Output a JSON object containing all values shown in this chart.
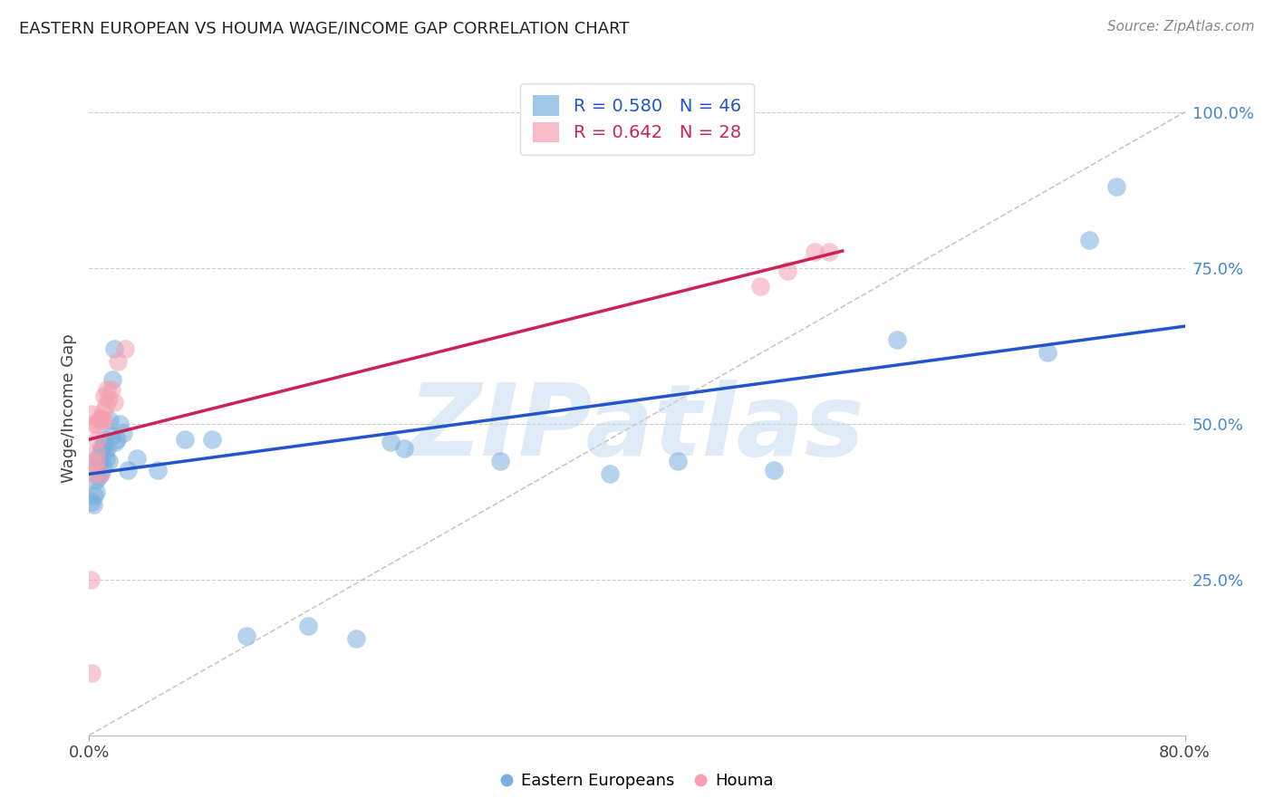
{
  "title": "EASTERN EUROPEAN VS HOUMA WAGE/INCOME GAP CORRELATION CHART",
  "source": "Source: ZipAtlas.com",
  "ylabel": "Wage/Income Gap",
  "xlim": [
    0.0,
    0.8
  ],
  "ylim": [
    0.0,
    1.05
  ],
  "y_ticks_right": [
    0.25,
    0.5,
    0.75,
    1.0
  ],
  "y_tick_labels_right": [
    "25.0%",
    "50.0%",
    "75.0%",
    "100.0%"
  ],
  "blue_R": 0.58,
  "blue_N": 46,
  "pink_R": 0.642,
  "pink_N": 28,
  "blue_color": "#7aaedd",
  "pink_color": "#f4a0b0",
  "trend_blue_color": "#2255cc",
  "trend_pink_color": "#cc2255",
  "ref_line_color": "#BBBBBB",
  "background_color": "#FFFFFF",
  "grid_color": "#CCCCCC",
  "right_axis_color": "#4488cc",
  "watermark": "ZIPatlas",
  "watermark_color": "#c0d8ee",
  "legend_label_blue": "Eastern Europeans",
  "legend_label_pink": "Houma",
  "blue_x": [
    0.002,
    0.003,
    0.004,
    0.005,
    0.005,
    0.006,
    0.006,
    0.007,
    0.007,
    0.008,
    0.008,
    0.009,
    0.009,
    0.01,
    0.01,
    0.011,
    0.011,
    0.012,
    0.013,
    0.014,
    0.015,
    0.016,
    0.017,
    0.018,
    0.019,
    0.02,
    0.022,
    0.025,
    0.028,
    0.035,
    0.05,
    0.07,
    0.09,
    0.115,
    0.16,
    0.195,
    0.22,
    0.23,
    0.3,
    0.38,
    0.43,
    0.5,
    0.59,
    0.7,
    0.73,
    0.75
  ],
  "blue_y": [
    0.375,
    0.37,
    0.385,
    0.39,
    0.41,
    0.43,
    0.445,
    0.415,
    0.44,
    0.42,
    0.455,
    0.44,
    0.46,
    0.43,
    0.465,
    0.455,
    0.475,
    0.445,
    0.46,
    0.44,
    0.505,
    0.48,
    0.57,
    0.62,
    0.47,
    0.475,
    0.5,
    0.485,
    0.425,
    0.445,
    0.425,
    0.475,
    0.475,
    0.16,
    0.175,
    0.155,
    0.47,
    0.46,
    0.44,
    0.42,
    0.44,
    0.425,
    0.635,
    0.615,
    0.795,
    0.88
  ],
  "pink_x": [
    0.001,
    0.002,
    0.003,
    0.004,
    0.005,
    0.006,
    0.006,
    0.007,
    0.008,
    0.009,
    0.01,
    0.01,
    0.011,
    0.012,
    0.013,
    0.014,
    0.016,
    0.018,
    0.021,
    0.026,
    0.008,
    0.005,
    0.003,
    0.002,
    0.49,
    0.51,
    0.53,
    0.54
  ],
  "pink_y": [
    0.25,
    0.1,
    0.42,
    0.435,
    0.455,
    0.475,
    0.5,
    0.505,
    0.51,
    0.505,
    0.505,
    0.52,
    0.545,
    0.53,
    0.555,
    0.54,
    0.555,
    0.535,
    0.6,
    0.62,
    0.42,
    0.44,
    0.5,
    0.515,
    0.72,
    0.745,
    0.775,
    0.775
  ]
}
